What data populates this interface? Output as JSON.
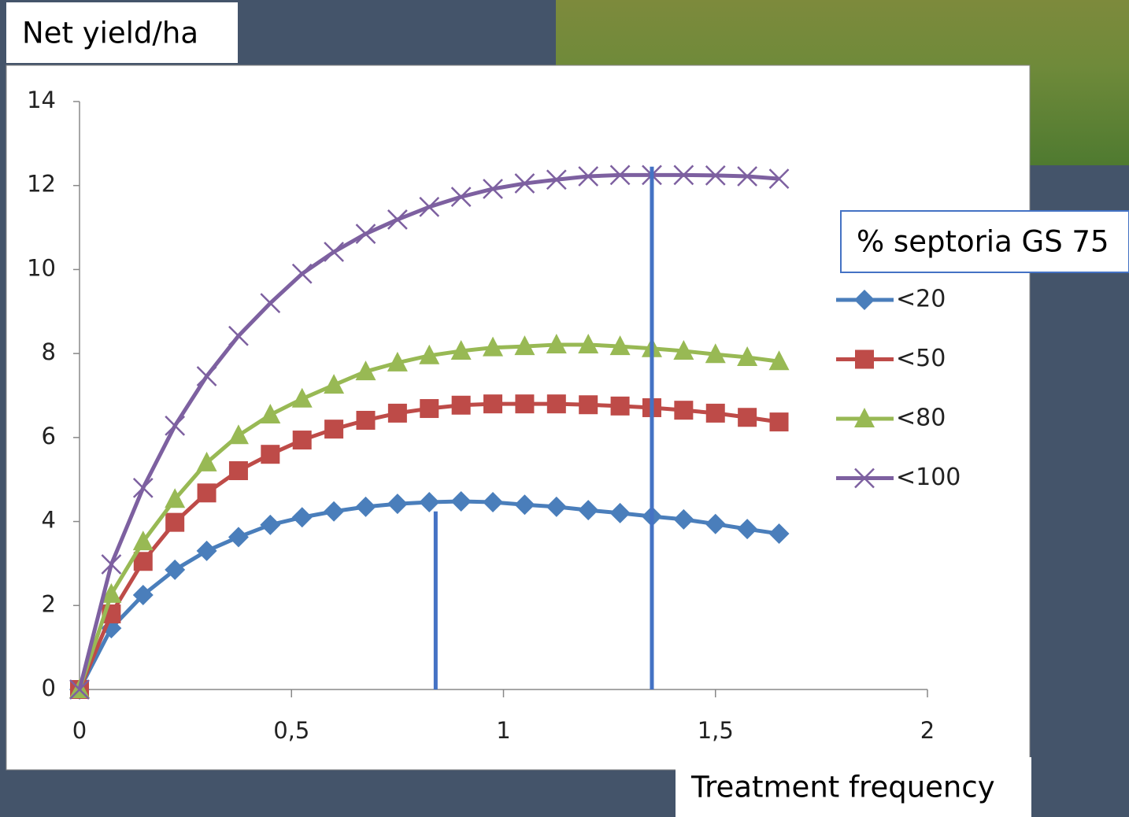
{
  "chart_data": {
    "type": "line",
    "ylabel": "Net yield/ha",
    "xlabel": "Treatment frequency",
    "legend_title": "% septoria GS 75",
    "x": [
      0,
      0.075,
      0.15,
      0.225,
      0.3,
      0.375,
      0.45,
      0.525,
      0.6,
      0.675,
      0.75,
      0.825,
      0.9,
      0.975,
      1.05,
      1.125,
      1.2,
      1.275,
      1.35,
      1.425,
      1.5,
      1.575,
      1.65
    ],
    "series": [
      {
        "name": "<20",
        "color": "#4a7ebb",
        "marker": "diamond",
        "values": [
          0,
          1.46,
          2.25,
          2.85,
          3.3,
          3.63,
          3.92,
          4.1,
          4.24,
          4.35,
          4.42,
          4.46,
          4.48,
          4.46,
          4.4,
          4.35,
          4.27,
          4.2,
          4.12,
          4.05,
          3.94,
          3.82,
          3.71
        ]
      },
      {
        "name": "<50",
        "color": "#be4b48",
        "marker": "square",
        "values": [
          0,
          1.8,
          3.05,
          3.98,
          4.68,
          5.21,
          5.6,
          5.94,
          6.2,
          6.41,
          6.58,
          6.69,
          6.77,
          6.8,
          6.8,
          6.8,
          6.78,
          6.75,
          6.71,
          6.65,
          6.58,
          6.48,
          6.37
        ]
      },
      {
        "name": "<80",
        "color": "#98b954",
        "marker": "triangle",
        "values": [
          0,
          2.27,
          3.52,
          4.53,
          5.4,
          6.05,
          6.54,
          6.92,
          7.25,
          7.57,
          7.78,
          7.95,
          8.06,
          8.14,
          8.17,
          8.21,
          8.21,
          8.17,
          8.12,
          8.06,
          7.98,
          7.91,
          7.81
        ]
      },
      {
        "name": "<100",
        "color": "#7d60a0",
        "marker": "x",
        "values": [
          0,
          2.98,
          4.8,
          6.28,
          7.46,
          8.42,
          9.2,
          9.9,
          10.42,
          10.85,
          11.19,
          11.49,
          11.73,
          11.92,
          12.05,
          12.14,
          12.22,
          12.25,
          12.25,
          12.25,
          12.24,
          12.22,
          12.16
        ]
      }
    ],
    "vlines": [
      {
        "x": 0.84,
        "ymax": 4.24
      },
      {
        "x": 1.35,
        "ymax": 12.45
      }
    ],
    "vline_color": "#4472c4",
    "xlim": [
      0,
      2
    ],
    "xticks": [
      0,
      {
        "value": 0.5,
        "label": "0,5"
      },
      1,
      {
        "value": 1.5,
        "label": "1,5"
      },
      2
    ],
    "ylim": [
      0,
      14
    ],
    "yticks": [
      0,
      2,
      4,
      6,
      8,
      10,
      12,
      14
    ],
    "grid": false
  }
}
